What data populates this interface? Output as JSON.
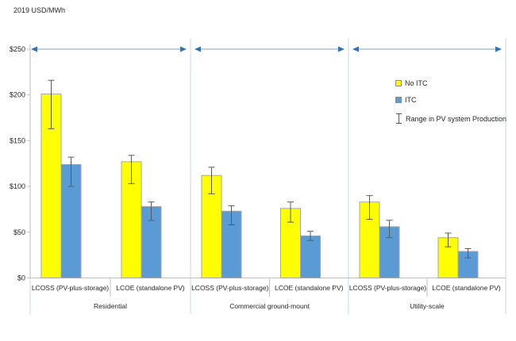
{
  "chart_data": {
    "type": "bar",
    "title": "2019 USD/MWh",
    "ylabel": "2019 USD/MWh",
    "ylim": [
      0,
      250
    ],
    "ytick_step": 50,
    "ytick_labels": [
      "$0",
      "$50",
      "$100",
      "$150",
      "$200",
      "$250"
    ],
    "grid": false,
    "legend_position": "upper right",
    "series_names": [
      "No ITC",
      "ITC"
    ],
    "groups": [
      {
        "label": "Residential",
        "categories": [
          {
            "label": "LCOSS (PV-plus-storage)",
            "bars": [
              {
                "series": "No ITC",
                "value": 201,
                "range": [
                  163,
                  216
                ]
              },
              {
                "series": "ITC",
                "value": 124,
                "range": [
                  100,
                  132
                ]
              }
            ]
          },
          {
            "label": "LCOE (standalone PV)",
            "bars": [
              {
                "series": "No ITC",
                "value": 127,
                "range": [
                  103,
                  134
                ]
              },
              {
                "series": "ITC",
                "value": 78,
                "range": [
                  63,
                  83
                ]
              }
            ]
          }
        ]
      },
      {
        "label": "Commercial ground-mount",
        "categories": [
          {
            "label": "LCOSS (PV-plus-storage)",
            "bars": [
              {
                "series": "No ITC",
                "value": 112,
                "range": [
                  92,
                  121
                ]
              },
              {
                "series": "ITC",
                "value": 73,
                "range": [
                  58,
                  79
                ]
              }
            ]
          },
          {
            "label": "LCOE (standalone PV)",
            "bars": [
              {
                "series": "No ITC",
                "value": 76,
                "range": [
                  61,
                  83
                ]
              },
              {
                "series": "ITC",
                "value": 46,
                "range": [
                  41,
                  51
                ]
              }
            ]
          }
        ]
      },
      {
        "label": "Utility-scale",
        "categories": [
          {
            "label": "LCOSS (PV-plus-storage)",
            "bars": [
              {
                "series": "No ITC",
                "value": 83,
                "range": [
                  64,
                  90
                ]
              },
              {
                "series": "ITC",
                "value": 56,
                "range": [
                  44,
                  63
                ]
              }
            ]
          },
          {
            "label": "LCOE (standalone PV)",
            "bars": [
              {
                "series": "No ITC",
                "value": 44,
                "range": [
                  34,
                  49
                ]
              },
              {
                "series": "ITC",
                "value": 29,
                "range": [
                  22,
                  32
                ]
              }
            ]
          }
        ]
      }
    ],
    "legend": [
      {
        "label": "No ITC",
        "color": "#FFFF00"
      },
      {
        "label": "ITC",
        "color": "#5B9BD5"
      },
      {
        "label": "Range in PV system Production",
        "symbol": "error-bar"
      }
    ],
    "colors": {
      "no_itc": "#FFFF00",
      "itc": "#5B9BD5",
      "bar_border": "#A6A6A6",
      "error_bar": "#595959",
      "axis": "#BFBFBF",
      "divider": "#C5D9F1",
      "arrow_line": "#A8C0DC",
      "arrow_head": "#2E74B5",
      "text": "#262626"
    }
  }
}
